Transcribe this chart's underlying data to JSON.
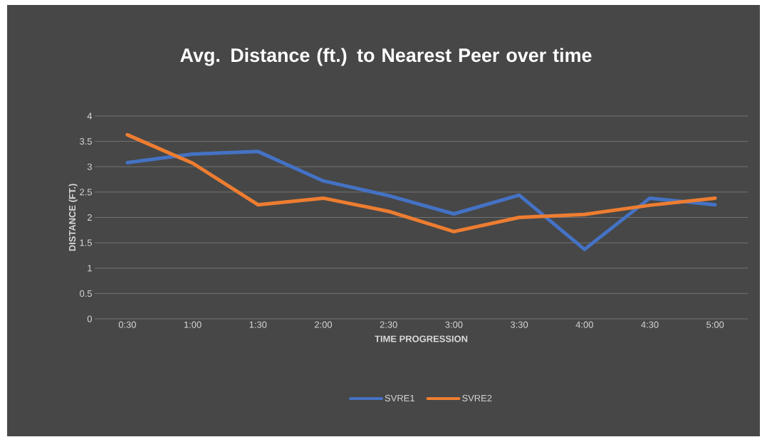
{
  "chart_data": {
    "type": "line",
    "title": "Avg. Distance (ft.) to Nearest Peer over time",
    "xlabel": "TIME PROGRESSION",
    "ylabel": "DISTANCE (FT.)",
    "categories": [
      "0:30",
      "1:00",
      "1:30",
      "2:00",
      "2:30",
      "3:00",
      "3:30",
      "4:00",
      "4:30",
      "5:00"
    ],
    "series": [
      {
        "name": "SVRE1",
        "color": "#4472c4",
        "values": [
          3.08,
          3.25,
          3.3,
          2.72,
          2.43,
          2.07,
          2.44,
          1.37,
          2.38,
          2.25
        ]
      },
      {
        "name": "SVRE2",
        "color": "#ed7d31",
        "values": [
          3.63,
          3.07,
          2.25,
          2.38,
          2.12,
          1.72,
          2.0,
          2.06,
          2.24,
          2.38
        ]
      }
    ],
    "ylim": [
      0,
      4
    ],
    "yticks": [
      0,
      0.5,
      1,
      1.5,
      2,
      2.5,
      3,
      3.5,
      4
    ],
    "grid": "y",
    "legend": "bottom",
    "marker": "none",
    "line_style": "solid"
  }
}
